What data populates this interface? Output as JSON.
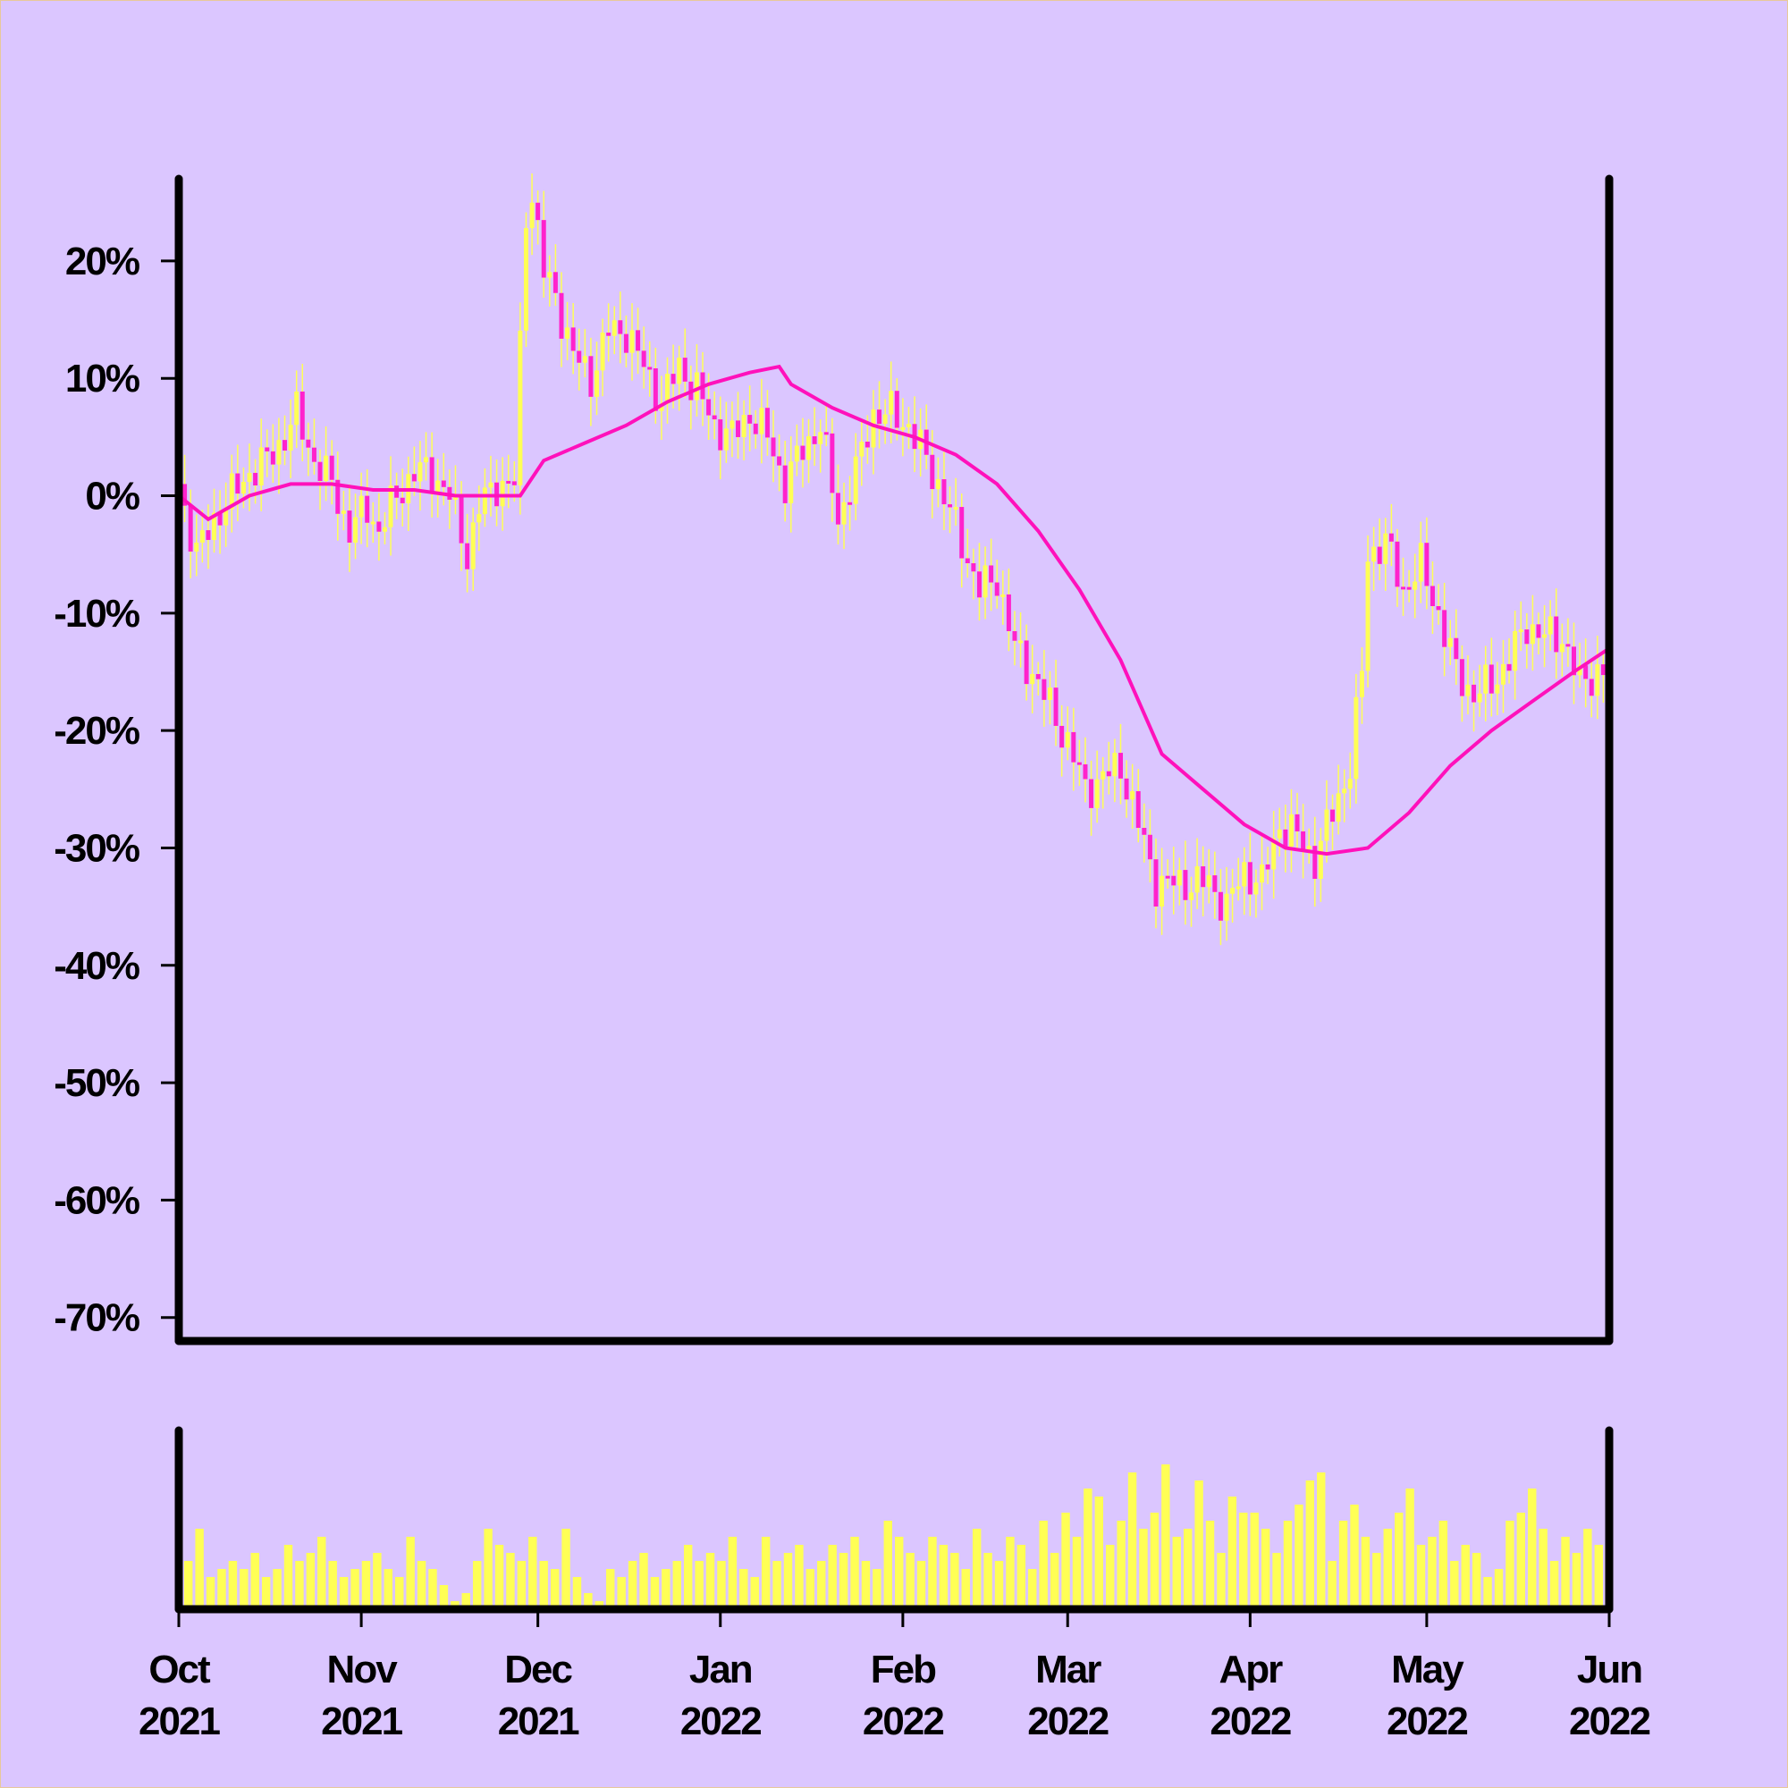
{
  "colors": {
    "background": "#dbc6ff",
    "up_candle": "#ffff55",
    "down_candle": "#ff22cc",
    "moving_average": "#ff11bb",
    "volume": "#ffff55",
    "axis": "#000000"
  },
  "chart_data": {
    "type": "candlestick",
    "title": "",
    "xlabel": "",
    "ylabel": "",
    "ylim": [
      -72,
      27
    ],
    "xlim": [
      "2021-10-01",
      "2022-06-01"
    ],
    "y_ticks": [
      {
        "value": 20,
        "label": "20%"
      },
      {
        "value": 10,
        "label": "10%"
      },
      {
        "value": 0,
        "label": "0%"
      },
      {
        "value": -10,
        "label": "-10%"
      },
      {
        "value": -20,
        "label": "-20%"
      },
      {
        "value": -30,
        "label": "-30%"
      },
      {
        "value": -40,
        "label": "-40%"
      },
      {
        "value": -50,
        "label": "-50%"
      },
      {
        "value": -60,
        "label": "-60%"
      },
      {
        "value": -70,
        "label": "-70%"
      }
    ],
    "x_ticks": [
      {
        "date": "2021-10-01",
        "month": "Oct",
        "year": "2021"
      },
      {
        "date": "2021-11-01",
        "month": "Nov",
        "year": "2021"
      },
      {
        "date": "2021-12-01",
        "month": "Dec",
        "year": "2021"
      },
      {
        "date": "2022-01-01",
        "month": "Jan",
        "year": "2022"
      },
      {
        "date": "2022-02-01",
        "month": "Feb",
        "year": "2022"
      },
      {
        "date": "2022-03-01",
        "month": "Mar",
        "year": "2022"
      },
      {
        "date": "2022-04-01",
        "month": "Apr",
        "year": "2022"
      },
      {
        "date": "2022-05-01",
        "month": "May",
        "year": "2022"
      },
      {
        "date": "2022-06-01",
        "month": "Jun",
        "year": "2022"
      }
    ],
    "close_series": {
      "name": "close",
      "points": [
        [
          "2021-10-01",
          1
        ],
        [
          "2021-10-04",
          -5
        ],
        [
          "2021-10-07",
          -2
        ],
        [
          "2021-10-10",
          0
        ],
        [
          "2021-10-13",
          2
        ],
        [
          "2021-10-16",
          3
        ],
        [
          "2021-10-19",
          5
        ],
        [
          "2021-10-21",
          7
        ],
        [
          "2021-10-24",
          3
        ],
        [
          "2021-10-27",
          1
        ],
        [
          "2021-10-30",
          -3
        ],
        [
          "2021-11-02",
          -1
        ],
        [
          "2021-11-04",
          -3
        ],
        [
          "2021-11-07",
          0
        ],
        [
          "2021-11-10",
          2
        ],
        [
          "2021-11-13",
          2
        ],
        [
          "2021-11-16",
          0
        ],
        [
          "2021-11-19",
          -5
        ],
        [
          "2021-11-21",
          -1
        ],
        [
          "2021-11-24",
          1
        ],
        [
          "2021-11-27",
          1
        ],
        [
          "2021-11-29",
          24
        ],
        [
          "2021-11-30",
          26
        ],
        [
          "2021-12-02",
          19
        ],
        [
          "2021-12-04",
          17
        ],
        [
          "2021-12-07",
          12
        ],
        [
          "2021-12-10",
          10
        ],
        [
          "2021-12-13",
          14
        ],
        [
          "2021-12-16",
          14
        ],
        [
          "2021-12-19",
          11
        ],
        [
          "2021-12-22",
          8
        ],
        [
          "2021-12-25",
          11
        ],
        [
          "2021-12-28",
          9
        ],
        [
          "2021-12-31",
          6
        ],
        [
          "2022-01-03",
          5
        ],
        [
          "2022-01-06",
          7
        ],
        [
          "2022-01-09",
          5
        ],
        [
          "2022-01-12",
          1
        ],
        [
          "2022-01-15",
          4
        ],
        [
          "2022-01-18",
          6
        ],
        [
          "2022-01-21",
          -2
        ],
        [
          "2022-01-24",
          2
        ],
        [
          "2022-01-27",
          7
        ],
        [
          "2022-01-30",
          7
        ],
        [
          "2022-02-02",
          6
        ],
        [
          "2022-02-05",
          3
        ],
        [
          "2022-02-08",
          0
        ],
        [
          "2022-02-11",
          -4
        ],
        [
          "2022-02-14",
          -8
        ],
        [
          "2022-02-17",
          -7
        ],
        [
          "2022-02-20",
          -13
        ],
        [
          "2022-02-23",
          -15
        ],
        [
          "2022-02-26",
          -18
        ],
        [
          "2022-03-01",
          -21
        ],
        [
          "2022-03-04",
          -25
        ],
        [
          "2022-03-07",
          -24
        ],
        [
          "2022-03-10",
          -23
        ],
        [
          "2022-03-13",
          -28
        ],
        [
          "2022-03-16",
          -33
        ],
        [
          "2022-03-19",
          -33
        ],
        [
          "2022-03-22",
          -33
        ],
        [
          "2022-03-25",
          -33
        ],
        [
          "2022-03-28",
          -35
        ],
        [
          "2022-03-31",
          -32
        ],
        [
          "2022-04-03",
          -33
        ],
        [
          "2022-04-06",
          -28
        ],
        [
          "2022-04-09",
          -29
        ],
        [
          "2022-04-12",
          -31
        ],
        [
          "2022-04-15",
          -27
        ],
        [
          "2022-04-18",
          -23
        ],
        [
          "2022-04-20",
          -15
        ],
        [
          "2022-04-21",
          -5
        ],
        [
          "2022-04-24",
          -4
        ],
        [
          "2022-04-27",
          -8
        ],
        [
          "2022-04-30",
          -6
        ],
        [
          "2022-05-03",
          -10
        ],
        [
          "2022-05-06",
          -15
        ],
        [
          "2022-05-09",
          -17
        ],
        [
          "2022-05-12",
          -16
        ],
        [
          "2022-05-15",
          -14
        ],
        [
          "2022-05-18",
          -11
        ],
        [
          "2022-05-21",
          -12
        ],
        [
          "2022-05-24",
          -12
        ],
        [
          "2022-05-27",
          -16
        ],
        [
          "2022-05-30",
          -15
        ],
        [
          "2022-06-01",
          -15
        ]
      ]
    },
    "moving_average": {
      "name": "moving average",
      "points": [
        [
          "2021-10-01",
          0
        ],
        [
          "2021-10-06",
          -2
        ],
        [
          "2021-10-13",
          0
        ],
        [
          "2021-10-20",
          1
        ],
        [
          "2021-10-27",
          1
        ],
        [
          "2021-11-03",
          0.5
        ],
        [
          "2021-11-10",
          0.5
        ],
        [
          "2021-11-17",
          0
        ],
        [
          "2021-11-24",
          0
        ],
        [
          "2021-11-28",
          0
        ],
        [
          "2021-12-02",
          3
        ],
        [
          "2021-12-09",
          4.5
        ],
        [
          "2021-12-16",
          6
        ],
        [
          "2021-12-23",
          8
        ],
        [
          "2021-12-30",
          9.5
        ],
        [
          "2022-01-06",
          10.5
        ],
        [
          "2022-01-11",
          11
        ],
        [
          "2022-01-13",
          9.5
        ],
        [
          "2022-01-20",
          7.5
        ],
        [
          "2022-01-27",
          6
        ],
        [
          "2022-02-03",
          5
        ],
        [
          "2022-02-10",
          3.5
        ],
        [
          "2022-02-17",
          1
        ],
        [
          "2022-02-24",
          -3
        ],
        [
          "2022-03-03",
          -8
        ],
        [
          "2022-03-10",
          -14
        ],
        [
          "2022-03-17",
          -22
        ],
        [
          "2022-03-24",
          -25
        ],
        [
          "2022-03-31",
          -28
        ],
        [
          "2022-04-07",
          -30
        ],
        [
          "2022-04-14",
          -30.5
        ],
        [
          "2022-04-21",
          -30
        ],
        [
          "2022-04-28",
          -27
        ],
        [
          "2022-05-05",
          -23
        ],
        [
          "2022-05-12",
          -20
        ],
        [
          "2022-05-19",
          -17.5
        ],
        [
          "2022-05-26",
          -15
        ],
        [
          "2022-06-01",
          -13
        ]
      ]
    },
    "volume": {
      "name": "volume",
      "values_relative": [
        0.3,
        0.5,
        0.2,
        0.25,
        0.3,
        0.25,
        0.35,
        0.2,
        0.25,
        0.4,
        0.3,
        0.35,
        0.45,
        0.3,
        0.2,
        0.25,
        0.3,
        0.35,
        0.25,
        0.2,
        0.45,
        0.3,
        0.25,
        0.15,
        0.05,
        0.1,
        0.3,
        0.5,
        0.4,
        0.35,
        0.3,
        0.45,
        0.3,
        0.25,
        0.5,
        0.2,
        0.1,
        0.05,
        0.25,
        0.2,
        0.3,
        0.35,
        0.2,
        0.25,
        0.3,
        0.4,
        0.3,
        0.35,
        0.3,
        0.45,
        0.25,
        0.2,
        0.45,
        0.3,
        0.35,
        0.4,
        0.25,
        0.3,
        0.4,
        0.35,
        0.45,
        0.3,
        0.25,
        0.55,
        0.45,
        0.35,
        0.3,
        0.45,
        0.4,
        0.35,
        0.25,
        0.5,
        0.35,
        0.3,
        0.45,
        0.4,
        0.25,
        0.55,
        0.35,
        0.6,
        0.45,
        0.75,
        0.7,
        0.4,
        0.55,
        0.85,
        0.5,
        0.6,
        0.9,
        0.45,
        0.5,
        0.8,
        0.55,
        0.35,
        0.7,
        0.6,
        0.6,
        0.5,
        0.35,
        0.55,
        0.65,
        0.8,
        0.85,
        0.3,
        0.55,
        0.65,
        0.45,
        0.35,
        0.5,
        0.6,
        0.75,
        0.4,
        0.45,
        0.55,
        0.3,
        0.4,
        0.35,
        0.2,
        0.25,
        0.55,
        0.6,
        0.75,
        0.5,
        0.3,
        0.45,
        0.35,
        0.5,
        0.4
      ]
    }
  }
}
